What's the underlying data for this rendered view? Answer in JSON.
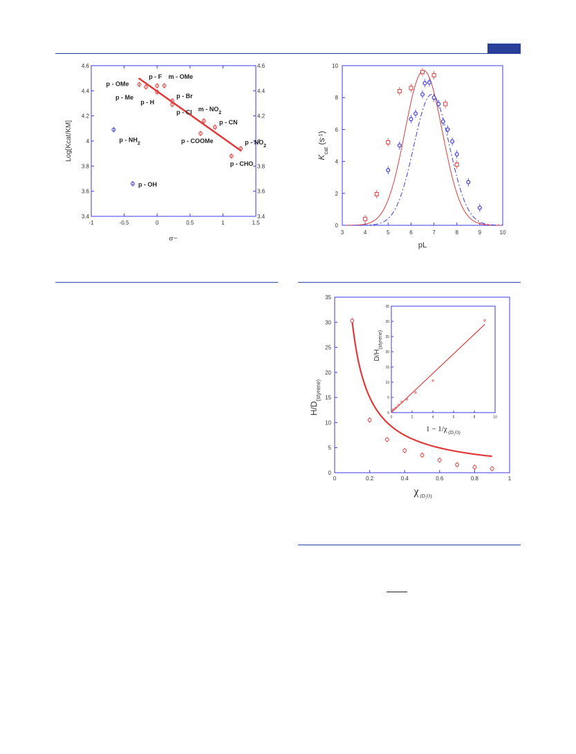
{
  "page": {
    "accent_color": "#2a3f9a",
    "red": "#e03a3a",
    "blue": "#3a3ae0"
  },
  "chart_data": [
    {
      "type": "scatter",
      "xlabel": "σ−",
      "ylabel": "Log[Kcat/KM]",
      "xlim": [
        -1,
        1.5
      ],
      "ylim": [
        3.4,
        4.6
      ],
      "x_ticks": [
        "-1",
        "-0.5",
        "0",
        "0.5",
        "1",
        "1.5"
      ],
      "y_ticks": [
        "3.4",
        "3.6",
        "3.8",
        "4",
        "4.2",
        "4.4",
        "4.6"
      ],
      "grid": false,
      "series": [
        {
          "color": "#e03a3a",
          "points": [
            {
              "x": -0.27,
              "y": 4.45,
              "label": "p - OMe"
            },
            {
              "x": -0.17,
              "y": 4.43,
              "label": "p - Me"
            },
            {
              "x": 0.0,
              "y": 4.39,
              "label": "p - H"
            },
            {
              "x": 0.0,
              "y": 4.44,
              "label": "p - F"
            },
            {
              "x": 0.11,
              "y": 4.44,
              "label": "m - OMe"
            },
            {
              "x": 0.23,
              "y": 4.32,
              "label": "p - Br"
            },
            {
              "x": 0.23,
              "y": 4.29,
              "label": "p - Cl"
            },
            {
              "x": 0.71,
              "y": 4.16,
              "label": "m - NO2"
            },
            {
              "x": 0.88,
              "y": 4.11,
              "label": "p - CN"
            },
            {
              "x": 0.66,
              "y": 4.06,
              "label": "p - COOMe"
            },
            {
              "x": 1.27,
              "y": 3.94,
              "label": "p - NO2"
            },
            {
              "x": 1.13,
              "y": 3.88,
              "label": "p - CHO"
            }
          ]
        },
        {
          "color": "#3a3ae0",
          "points": [
            {
              "x": -0.66,
              "y": 4.09,
              "label": "p - NH2"
            },
            {
              "x": -0.37,
              "y": 3.66,
              "label": "p - OH"
            }
          ]
        }
      ],
      "fit_line": {
        "x": [
          -0.28,
          1.28
        ],
        "y": [
          4.5,
          3.92
        ]
      }
    },
    {
      "type": "line",
      "xlabel": "pL",
      "ylabel": "Kcat (s-1)",
      "xlim": [
        3,
        10
      ],
      "ylim": [
        0,
        10
      ],
      "x_ticks": [
        "3",
        "4",
        "5",
        "6",
        "7",
        "8",
        "9",
        "10"
      ],
      "y_ticks": [
        "0",
        "2",
        "4",
        "6",
        "8",
        "10"
      ],
      "series": [
        {
          "color": "#e03a3a",
          "marker": "square",
          "x": [
            4.0,
            4.5,
            5.0,
            5.5,
            6.0,
            6.5,
            7.0,
            7.5,
            8.0
          ],
          "y": [
            0.4,
            1.95,
            5.2,
            8.4,
            8.6,
            9.6,
            9.4,
            7.6,
            3.8
          ]
        },
        {
          "color": "#3a3ae0",
          "marker": "circle",
          "x": [
            5.0,
            5.5,
            6.0,
            6.2,
            6.5,
            6.6,
            6.8,
            7.0,
            7.2,
            7.4,
            7.6,
            7.8,
            8.0,
            8.5,
            9.0
          ],
          "y": [
            3.45,
            5.0,
            6.65,
            7.0,
            8.2,
            8.9,
            8.95,
            8.0,
            7.6,
            6.5,
            6.0,
            5.25,
            4.45,
            2.7,
            1.1
          ]
        }
      ],
      "curves": [
        {
          "color": "#e03a3a",
          "style": "solid",
          "peak_x": 6.55,
          "peak_y": 9.7,
          "width": 1.1
        },
        {
          "color": "#3a3ae0",
          "style": "dash-dot",
          "peak_x": 6.9,
          "peak_y": 8.2,
          "width": 1.05
        }
      ]
    },
    {
      "type": "scatter",
      "xlabel": "χ",
      "xlabel_sub": "(D2O)",
      "ylabel": "H/D",
      "ylabel_sub": "(styrene)",
      "xlim": [
        0,
        1
      ],
      "ylim": [
        0,
        35
      ],
      "x_ticks": [
        "0",
        "0.2",
        "0.4",
        "0.6",
        "0.8",
        "1"
      ],
      "y_ticks": [
        "0",
        "5",
        "10",
        "15",
        "20",
        "25",
        "30",
        "35"
      ],
      "series": [
        {
          "color": "#e03a3a",
          "x": [
            0.1,
            0.2,
            0.3,
            0.4,
            0.5,
            0.6,
            0.7,
            0.8,
            0.9
          ],
          "y": [
            30.3,
            10.5,
            6.6,
            4.4,
            3.5,
            2.5,
            1.6,
            1.1,
            0.8
          ]
        }
      ],
      "fit_curve": {
        "color": "#e03a3a",
        "a": 3.03,
        "b": -0.1,
        "x_start": 0.1,
        "x_end": 0.9
      },
      "inset": {
        "xlabel": "1 − 1/χ",
        "xlabel_sub": "(D2O)",
        "ylabel": "D/H",
        "ylabel_sub": "(styrene)",
        "xlim": [
          0,
          10
        ],
        "ylim": [
          0,
          35
        ],
        "x_ticks": [
          "0",
          "2",
          "4",
          "6",
          "8",
          "10"
        ],
        "y_ticks": [
          "0",
          "5",
          "10",
          "15",
          "20",
          "25",
          "30",
          "35"
        ],
        "x": [
          0.11,
          0.25,
          0.43,
          0.67,
          1.0,
          1.5,
          2.33,
          4.0,
          9.0
        ],
        "y": [
          0.8,
          1.1,
          1.6,
          2.5,
          3.5,
          4.4,
          6.6,
          10.5,
          30.3
        ],
        "fit_line": {
          "x": [
            0,
            9.0
          ],
          "y": [
            0,
            29
          ]
        }
      }
    }
  ]
}
